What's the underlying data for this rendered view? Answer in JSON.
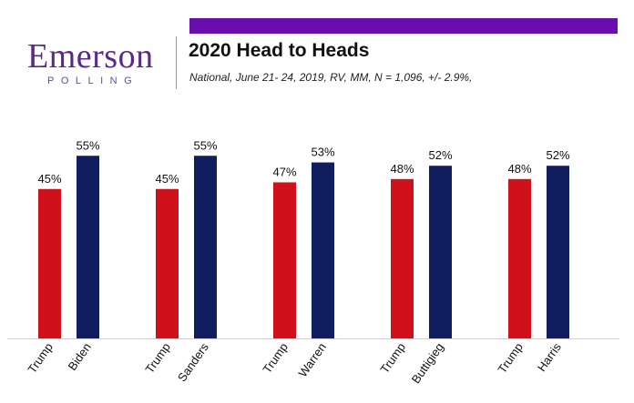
{
  "logo": {
    "name": "Emerson",
    "sub": "POLLING"
  },
  "colors": {
    "brand": "#5b2a86",
    "top_bar": "#6a0dad",
    "trump": "#d0111b",
    "democrat": "#101d5e"
  },
  "chart_data": {
    "type": "bar",
    "title": "2020 Head to Heads",
    "subtitle": "National, June 21- 24, 2019, RV, MM, N = 1,096, +/- 2.9%,",
    "ylim": [
      0,
      60
    ],
    "value_suffix": "%",
    "matchups": [
      {
        "bars": [
          {
            "name": "Trump",
            "value": 45,
            "party": "R"
          },
          {
            "name": "Biden",
            "value": 55,
            "party": "D"
          }
        ]
      },
      {
        "bars": [
          {
            "name": "Trump",
            "value": 45,
            "party": "R"
          },
          {
            "name": "Sanders",
            "value": 55,
            "party": "D"
          }
        ]
      },
      {
        "bars": [
          {
            "name": "Trump",
            "value": 47,
            "party": "R"
          },
          {
            "name": "Warren",
            "value": 53,
            "party": "D"
          }
        ]
      },
      {
        "bars": [
          {
            "name": "Trump",
            "value": 48,
            "party": "R"
          },
          {
            "name": "Buttigieg",
            "value": 52,
            "party": "D"
          }
        ]
      },
      {
        "bars": [
          {
            "name": "Trump",
            "value": 48,
            "party": "R"
          },
          {
            "name": "Harris",
            "value": 52,
            "party": "D"
          }
        ]
      }
    ]
  }
}
